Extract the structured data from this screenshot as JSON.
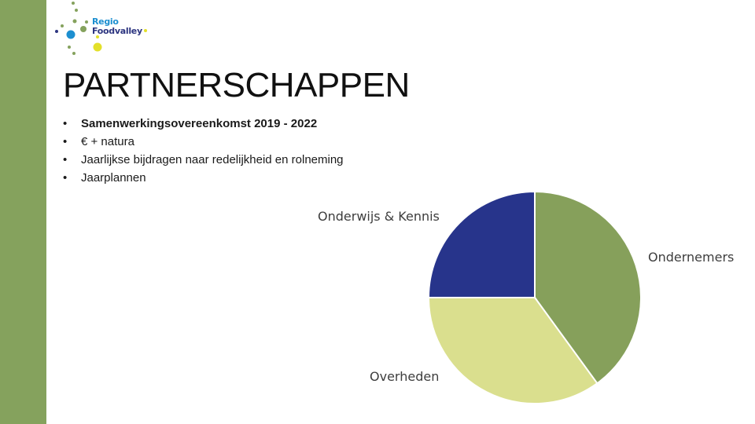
{
  "slide": {
    "title": "PARTNERSCHAPPEN",
    "accent_color": "#85a25d",
    "bullets": [
      {
        "text": "Samenwerkingsovereenkomst 2019 - 2022",
        "bold": true
      },
      {
        "text": "€ + natura",
        "bold": false
      },
      {
        "text": "Jaarlijkse bijdragen naar redelijkheid en rolneming",
        "bold": false
      },
      {
        "text": "Jaarplannen",
        "bold": false
      }
    ],
    "bullet_glyph": "•"
  },
  "logo": {
    "line1": "Regio",
    "line2": "Foodvalley",
    "colors": [
      "#1d8fd0",
      "#2d3580",
      "#85a25d",
      "#e3e02a"
    ]
  },
  "chart_data": {
    "type": "pie",
    "series": [
      {
        "name": "Ondernemers",
        "value": 40,
        "color": "#86a05b"
      },
      {
        "name": "Overheden",
        "value": 35,
        "color": "#dadf8e"
      },
      {
        "name": "Onderwijs & Kennis",
        "value": 25,
        "color": "#27348b"
      }
    ],
    "start_angle_deg": 0,
    "direction": "clockwise",
    "legend": "labels-outside"
  }
}
